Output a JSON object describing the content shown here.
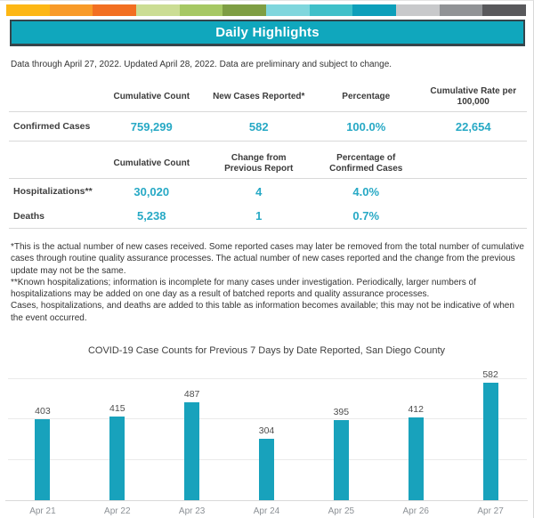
{
  "theme": {
    "banner_teal": "#10a7bd",
    "value_teal": "#27a9c5",
    "bar_teal": "#18a2bc",
    "stripe_colors": [
      "#fdb714",
      "#f89a28",
      "#f26f21",
      "#cbdd94",
      "#a6c864",
      "#7e9e44",
      "#7fd6dd",
      "#3fc0c9",
      "#0d9fba",
      "#c8c9cb",
      "#919396",
      "#59595c"
    ]
  },
  "header": {
    "title": "Daily Highlights"
  },
  "intro": "Data through April 27, 2022. Updated April 28, 2022. Data are preliminary and subject to change.",
  "table1": {
    "headers": [
      "Cumulative Count",
      "New Cases Reported*",
      "Percentage",
      "Cumulative Rate per 100,000"
    ],
    "rows": [
      {
        "label": "Confirmed Cases",
        "values": [
          "759,299",
          "582",
          "100.0%",
          "22,654"
        ]
      }
    ]
  },
  "table2": {
    "headers": [
      "Cumulative Count",
      "Change from Previous Report",
      "Percentage of Confirmed Cases",
      ""
    ],
    "rows": [
      {
        "label": "Hospitalizations**",
        "values": [
          "30,020",
          "4",
          "4.0%",
          ""
        ]
      },
      {
        "label": "Deaths",
        "values": [
          "5,238",
          "1",
          "0.7%",
          ""
        ]
      }
    ]
  },
  "footnotes": [
    "*This is the actual number of new cases received. Some reported cases may later be removed from the total number of cumulative cases through routine quality assurance processes. The actual number of new cases reported and the change from the previous update may not be the same.",
    "**Known hospitalizations; information is incomplete for many cases under investigation. Periodically, larger numbers of hospitalizations may be added on one day as a result of batched reports and quality assurance processes.",
    "Cases, hospitalizations, and deaths are added to this table as information becomes available; this may not be indicative of when the event occurred."
  ],
  "chart_data": {
    "type": "bar",
    "title": "COVID-19 Case Counts for Previous 7 Days by Date Reported, San Diego County",
    "categories": [
      "Apr 21",
      "Apr 22",
      "Apr 23",
      "Apr 24",
      "Apr 25",
      "Apr 26",
      "Apr 27"
    ],
    "values": [
      403,
      415,
      487,
      304,
      395,
      412,
      582
    ],
    "xlabel": "",
    "ylabel": "",
    "ylim": [
      0,
      675
    ],
    "gridline_values": [
      200,
      400,
      600
    ],
    "grid": true,
    "legend": "none",
    "bar_color": "#18a2bc",
    "data_labels": true
  }
}
